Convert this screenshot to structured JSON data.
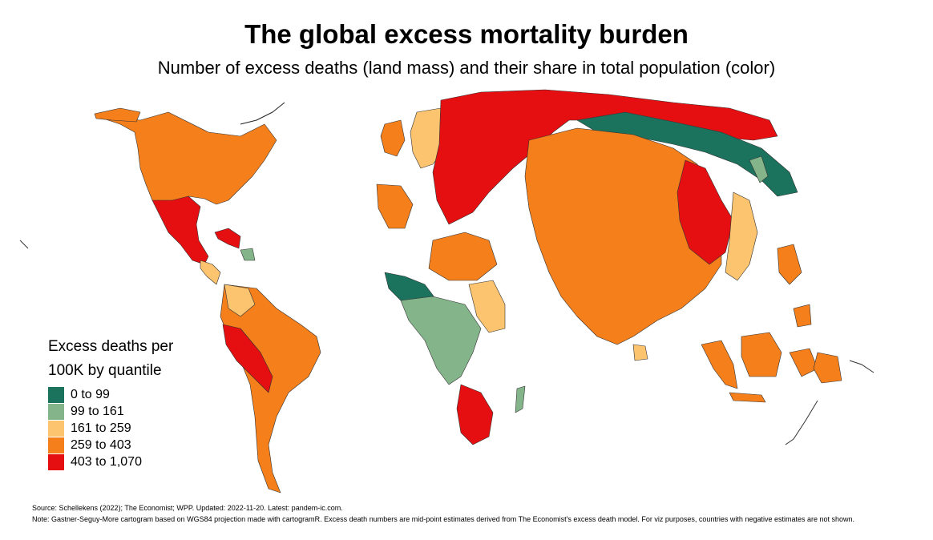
{
  "title": "The global excess mortality burden",
  "subtitle": "Number of excess deaths (land mass) and their share in total population (color)",
  "legend": {
    "title_line1": "Excess deaths per",
    "title_line2": "100K by quantile",
    "items": [
      {
        "label": "0 to 99",
        "color": "#1b735e"
      },
      {
        "label": "99 to 161",
        "color": "#84b58a"
      },
      {
        "label": "161 to 259",
        "color": "#fdc46f"
      },
      {
        "label": "259 to 403",
        "color": "#f47f1b"
      },
      {
        "label": "403 to 1,070",
        "color": "#e50f12"
      }
    ]
  },
  "source": "Source: Schellekens (2022); The Economist; WPP. Updated: 2022-11-20. Latest: pandem-ic.com.",
  "note": "Note: Gastner-Seguy-More cartogram based on WGS84 projection made with cartogramR. Excess death numbers are mid-point estimates derived from The Economist's excess death model. For viz purposes, countries with negative estimates are not shown."
}
